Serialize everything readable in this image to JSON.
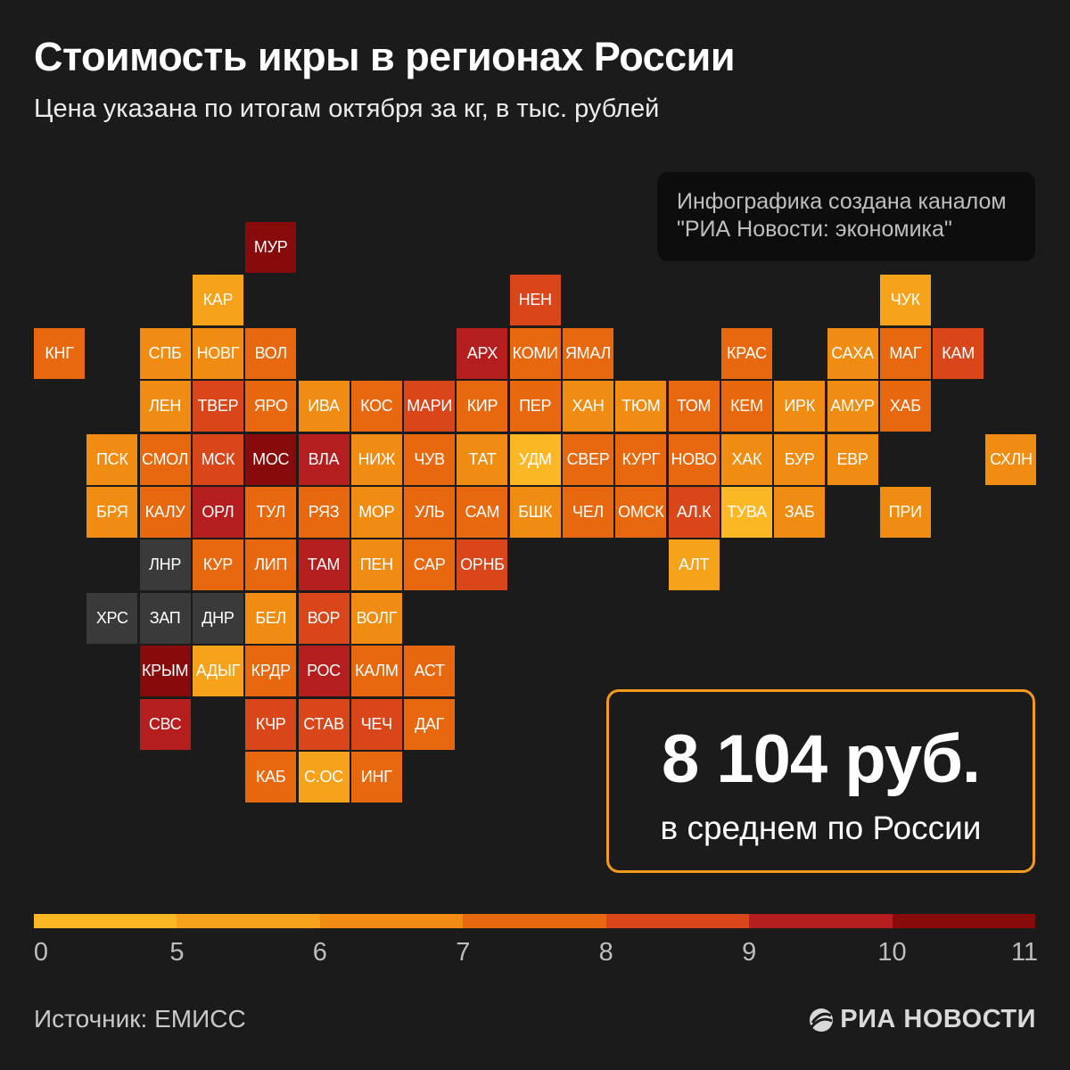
{
  "header": {
    "title": "Стоимость икры в регионах России",
    "subtitle": "Цена указана по итогам октября за кг, в тыс. рублей"
  },
  "credit": {
    "line1": "Инфографика создана каналом",
    "line2": "\"РИА Новости: экономика\""
  },
  "summary": {
    "value": "8 104 руб.",
    "caption": "в среднем по России"
  },
  "colors": {
    "no_data": "#3a3a3a",
    "bins": [
      "#fcb824",
      "#f7a21b",
      "#f18c13",
      "#e8680f",
      "#d9461a",
      "#b51e1e",
      "#870b0b"
    ]
  },
  "legend": {
    "ticks": [
      "0",
      "5",
      "6",
      "7",
      "8",
      "9",
      "10",
      "11"
    ]
  },
  "map": {
    "cells": [
      {
        "label": "МУР",
        "col": 4,
        "row": 0,
        "bin": 6
      },
      {
        "label": "КАР",
        "col": 3,
        "row": 1,
        "bin": 1
      },
      {
        "label": "НЕН",
        "col": 9,
        "row": 1,
        "bin": 4
      },
      {
        "label": "ЧУК",
        "col": 16,
        "row": 1,
        "bin": 1
      },
      {
        "label": "КНГ",
        "col": 0,
        "row": 2,
        "bin": 3
      },
      {
        "label": "СПБ",
        "col": 2,
        "row": 2,
        "bin": 2
      },
      {
        "label": "НОВГ",
        "col": 3,
        "row": 2,
        "bin": 2
      },
      {
        "label": "ВОЛ",
        "col": 4,
        "row": 2,
        "bin": 3
      },
      {
        "label": "АРХ",
        "col": 8,
        "row": 2,
        "bin": 5
      },
      {
        "label": "КОМИ",
        "col": 9,
        "row": 2,
        "bin": 3
      },
      {
        "label": "ЯМАЛ",
        "col": 10,
        "row": 2,
        "bin": 3
      },
      {
        "label": "КРАС",
        "col": 13,
        "row": 2,
        "bin": 3
      },
      {
        "label": "САХА",
        "col": 15,
        "row": 2,
        "bin": 2
      },
      {
        "label": "МАГ",
        "col": 16,
        "row": 2,
        "bin": 3
      },
      {
        "label": "КАМ",
        "col": 17,
        "row": 2,
        "bin": 4
      },
      {
        "label": "ЛЕН",
        "col": 2,
        "row": 3,
        "bin": 2
      },
      {
        "label": "ТВЕР",
        "col": 3,
        "row": 3,
        "bin": 4
      },
      {
        "label": "ЯРО",
        "col": 4,
        "row": 3,
        "bin": 3
      },
      {
        "label": "ИВА",
        "col": 5,
        "row": 3,
        "bin": 2
      },
      {
        "label": "КОС",
        "col": 6,
        "row": 3,
        "bin": 3
      },
      {
        "label": "МАРИ",
        "col": 7,
        "row": 3,
        "bin": 4
      },
      {
        "label": "КИР",
        "col": 8,
        "row": 3,
        "bin": 3
      },
      {
        "label": "ПЕР",
        "col": 9,
        "row": 3,
        "bin": 3
      },
      {
        "label": "ХАН",
        "col": 10,
        "row": 3,
        "bin": 2
      },
      {
        "label": "ТЮМ",
        "col": 11,
        "row": 3,
        "bin": 2
      },
      {
        "label": "ТОМ",
        "col": 12,
        "row": 3,
        "bin": 3
      },
      {
        "label": "КЕМ",
        "col": 13,
        "row": 3,
        "bin": 3
      },
      {
        "label": "ИРК",
        "col": 14,
        "row": 3,
        "bin": 2
      },
      {
        "label": "АМУР",
        "col": 15,
        "row": 3,
        "bin": 2
      },
      {
        "label": "ХАБ",
        "col": 16,
        "row": 3,
        "bin": 3
      },
      {
        "label": "ПСК",
        "col": 1,
        "row": 4,
        "bin": 2
      },
      {
        "label": "СМОЛ",
        "col": 2,
        "row": 4,
        "bin": 3
      },
      {
        "label": "МСК",
        "col": 3,
        "row": 4,
        "bin": 4
      },
      {
        "label": "МОС",
        "col": 4,
        "row": 4,
        "bin": 6
      },
      {
        "label": "ВЛА",
        "col": 5,
        "row": 4,
        "bin": 5
      },
      {
        "label": "НИЖ",
        "col": 6,
        "row": 4,
        "bin": 2
      },
      {
        "label": "ЧУВ",
        "col": 7,
        "row": 4,
        "bin": 3
      },
      {
        "label": "ТАТ",
        "col": 8,
        "row": 4,
        "bin": 2
      },
      {
        "label": "УДМ",
        "col": 9,
        "row": 4,
        "bin": 0
      },
      {
        "label": "СВЕР",
        "col": 10,
        "row": 4,
        "bin": 3
      },
      {
        "label": "КУРГ",
        "col": 11,
        "row": 4,
        "bin": 3
      },
      {
        "label": "НОВО",
        "col": 12,
        "row": 4,
        "bin": 3
      },
      {
        "label": "ХАК",
        "col": 13,
        "row": 4,
        "bin": 2
      },
      {
        "label": "БУР",
        "col": 14,
        "row": 4,
        "bin": 2
      },
      {
        "label": "ЕВР",
        "col": 15,
        "row": 4,
        "bin": 2
      },
      {
        "label": "СХЛН",
        "col": 18,
        "row": 4,
        "bin": 2
      },
      {
        "label": "БРЯ",
        "col": 1,
        "row": 5,
        "bin": 2
      },
      {
        "label": "КАЛУ",
        "col": 2,
        "row": 5,
        "bin": 3
      },
      {
        "label": "ОРЛ",
        "col": 3,
        "row": 5,
        "bin": 5
      },
      {
        "label": "ТУЛ",
        "col": 4,
        "row": 5,
        "bin": 3
      },
      {
        "label": "РЯЗ",
        "col": 5,
        "row": 5,
        "bin": 3
      },
      {
        "label": "МОР",
        "col": 6,
        "row": 5,
        "bin": 2
      },
      {
        "label": "УЛЬ",
        "col": 7,
        "row": 5,
        "bin": 3
      },
      {
        "label": "САМ",
        "col": 8,
        "row": 5,
        "bin": 3
      },
      {
        "label": "БШК",
        "col": 9,
        "row": 5,
        "bin": 2
      },
      {
        "label": "ЧЕЛ",
        "col": 10,
        "row": 5,
        "bin": 3
      },
      {
        "label": "ОМСК",
        "col": 11,
        "row": 5,
        "bin": 3
      },
      {
        "label": "АЛ.К",
        "col": 12,
        "row": 5,
        "bin": 4
      },
      {
        "label": "ТУВА",
        "col": 13,
        "row": 5,
        "bin": 0
      },
      {
        "label": "ЗАБ",
        "col": 14,
        "row": 5,
        "bin": 2
      },
      {
        "label": "ПРИ",
        "col": 16,
        "row": 5,
        "bin": 2
      },
      {
        "label": "ЛНР",
        "col": 2,
        "row": 6,
        "bin": -1
      },
      {
        "label": "КУР",
        "col": 3,
        "row": 6,
        "bin": 3
      },
      {
        "label": "ЛИП",
        "col": 4,
        "row": 6,
        "bin": 3
      },
      {
        "label": "ТАМ",
        "col": 5,
        "row": 6,
        "bin": 5
      },
      {
        "label": "ПЕН",
        "col": 6,
        "row": 6,
        "bin": 2
      },
      {
        "label": "САР",
        "col": 7,
        "row": 6,
        "bin": 3
      },
      {
        "label": "ОРНБ",
        "col": 8,
        "row": 6,
        "bin": 4
      },
      {
        "label": "АЛТ",
        "col": 12,
        "row": 6,
        "bin": 1
      },
      {
        "label": "ХРС",
        "col": 1,
        "row": 7,
        "bin": -1
      },
      {
        "label": "ЗАП",
        "col": 2,
        "row": 7,
        "bin": -1
      },
      {
        "label": "ДНР",
        "col": 3,
        "row": 7,
        "bin": -1
      },
      {
        "label": "БЕЛ",
        "col": 4,
        "row": 7,
        "bin": 2
      },
      {
        "label": "ВОР",
        "col": 5,
        "row": 7,
        "bin": 4
      },
      {
        "label": "ВОЛГ",
        "col": 6,
        "row": 7,
        "bin": 2
      },
      {
        "label": "КРЫМ",
        "col": 2,
        "row": 8,
        "bin": 6
      },
      {
        "label": "АДЫГ",
        "col": 3,
        "row": 8,
        "bin": 1
      },
      {
        "label": "КРДР",
        "col": 4,
        "row": 8,
        "bin": 3
      },
      {
        "label": "РОС",
        "col": 5,
        "row": 8,
        "bin": 5
      },
      {
        "label": "КАЛМ",
        "col": 6,
        "row": 8,
        "bin": 3
      },
      {
        "label": "АСТ",
        "col": 7,
        "row": 8,
        "bin": 3
      },
      {
        "label": "СВС",
        "col": 2,
        "row": 9,
        "bin": 5
      },
      {
        "label": "КЧР",
        "col": 4,
        "row": 9,
        "bin": 4
      },
      {
        "label": "СТАВ",
        "col": 5,
        "row": 9,
        "bin": 4
      },
      {
        "label": "ЧЕЧ",
        "col": 6,
        "row": 9,
        "bin": 4
      },
      {
        "label": "ДАГ",
        "col": 7,
        "row": 9,
        "bin": 3
      },
      {
        "label": "КАБ",
        "col": 4,
        "row": 10,
        "bin": 3
      },
      {
        "label": "С.ОС",
        "col": 5,
        "row": 10,
        "bin": 1
      },
      {
        "label": "ИНГ",
        "col": 6,
        "row": 10,
        "bin": 3
      }
    ]
  },
  "footer": {
    "source": "Источник: ЕМИСС",
    "logo_text": "РИА НОВОСТИ",
    "logo_icon": "ria-logo-icon"
  }
}
